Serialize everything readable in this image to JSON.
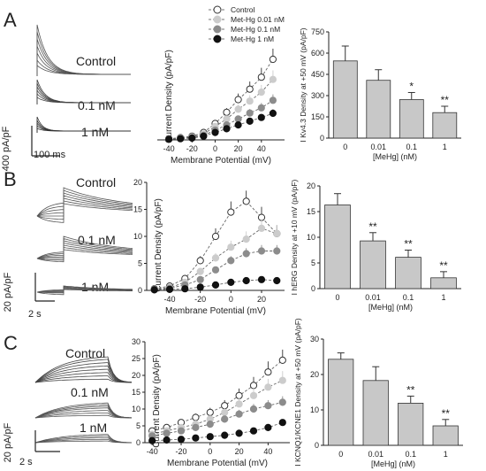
{
  "panel_labels": [
    "A",
    "B",
    "C"
  ],
  "legend": [
    {
      "label": "Control",
      "fill": "#ffffff"
    },
    {
      "label": "Met-Hg 0.01 nM",
      "fill": "#cccccc"
    },
    {
      "label": "Met-Hg 0.1 nM",
      "fill": "#8c8c8c"
    },
    {
      "label": "Met-Hg 1 nM",
      "fill": "#111111"
    }
  ],
  "colors": {
    "control": "#ffffff",
    "c001": "#cccccc",
    "c01": "#8c8c8c",
    "c1": "#111111",
    "bar": "#c8c8c8"
  },
  "traces": {
    "A": {
      "labels": [
        "Control",
        "0.1 nM",
        "1 nM"
      ],
      "scale_y": "400 pA/pF",
      "scale_x": "100 ms"
    },
    "B": {
      "labels": [
        "Control",
        "0.1 nM",
        "1 nM"
      ],
      "scale_y": "20 pA/pF",
      "scale_x": "2 s"
    },
    "C": {
      "labels": [
        "Control",
        "0.1 nM",
        "1 nM"
      ],
      "scale_y": "20 pA/pF",
      "scale_x": "2 s"
    }
  },
  "chart_data": [
    {
      "panel": "A",
      "type": "line",
      "xlabel": "Membrane Potential (mV)",
      "ylabel": "Current Density (pA/pF)",
      "xticks": [
        "-40",
        "-20",
        "0",
        "20",
        "40"
      ],
      "x": [
        -40,
        -30,
        -20,
        -10,
        0,
        10,
        20,
        30,
        40,
        50
      ],
      "xlim": [
        -50,
        60
      ],
      "ylim": [
        0,
        700
      ],
      "series": [
        {
          "name": "Control",
          "values": [
            8,
            15,
            25,
            50,
            110,
            185,
            270,
            340,
            420,
            540
          ]
        },
        {
          "name": "Met-Hg 0.01 nM",
          "values": [
            6,
            12,
            20,
            40,
            90,
            140,
            205,
            260,
            320,
            405
          ]
        },
        {
          "name": "Met-Hg 0.1 nM",
          "values": [
            5,
            10,
            15,
            30,
            65,
            100,
            140,
            180,
            215,
            265
          ]
        },
        {
          "name": "Met-Hg 1 nM",
          "values": [
            4,
            8,
            12,
            25,
            50,
            75,
            100,
            125,
            150,
            178
          ]
        }
      ]
    },
    {
      "panel": "A",
      "type": "bar",
      "ylabel": "I Kv4.3 Density at +50 mV (pA/pF)",
      "xlabel": "[MeHg] (nM)",
      "categories": [
        "0",
        "0.01",
        "0.1",
        "1"
      ],
      "values": [
        545,
        408,
        272,
        180
      ],
      "errors": [
        105,
        75,
        50,
        45
      ],
      "significance": [
        "",
        "",
        "*",
        "**"
      ],
      "yticks": [
        "0",
        "150",
        "300",
        "450",
        "600",
        "750"
      ],
      "ylim": [
        0,
        750
      ]
    },
    {
      "panel": "B",
      "type": "line",
      "xlabel": "Membrane Potential (mV)",
      "ylabel": "Current Density (pA/pF)",
      "xticks": [
        "-40",
        "-20",
        "0",
        "20"
      ],
      "yticks": [
        "0",
        "5",
        "10",
        "15",
        "20"
      ],
      "x": [
        -50,
        -40,
        -30,
        -20,
        -10,
        0,
        10,
        20,
        30
      ],
      "xlim": [
        -55,
        35
      ],
      "ylim": [
        0,
        20
      ],
      "series": [
        {
          "name": "Control",
          "values": [
            0.3,
            0.8,
            2.2,
            5.5,
            10.0,
            14.5,
            16.5,
            13.5,
            10.5
          ]
        },
        {
          "name": "Met-Hg 0.01 nM",
          "values": [
            0.2,
            0.5,
            1.5,
            3.5,
            6.0,
            8.0,
            9.5,
            11.5,
            10.5
          ]
        },
        {
          "name": "Met-Hg 0.1 nM",
          "values": [
            0.2,
            0.4,
            1.0,
            2.0,
            3.8,
            5.5,
            6.8,
            7.3,
            7.3
          ]
        },
        {
          "name": "Met-Hg 1 nM",
          "values": [
            0.1,
            0.2,
            0.3,
            0.6,
            1.0,
            1.5,
            1.8,
            2.0,
            1.8
          ]
        }
      ]
    },
    {
      "panel": "B",
      "type": "bar",
      "ylabel": "I hERG Density at +10 mV (pA/pF)",
      "xlabel": "[MeHg] (nM)",
      "categories": [
        "0",
        "0.01",
        "0.1",
        "1"
      ],
      "values": [
        16.3,
        9.3,
        6.1,
        2.1
      ],
      "errors": [
        2.2,
        1.6,
        1.4,
        1.2
      ],
      "significance": [
        "",
        "**",
        "**",
        "**"
      ],
      "yticks": [
        "0",
        "5",
        "10",
        "15",
        "20"
      ],
      "ylim": [
        0,
        20
      ]
    },
    {
      "panel": "C",
      "type": "line",
      "xlabel": "Membrane Potential (mV)",
      "ylabel": "Current Density (pA/pF)",
      "xticks": [
        "-40",
        "-20",
        "0",
        "20",
        "40"
      ],
      "yticks": [
        "0",
        "5",
        "10",
        "15",
        "20",
        "25",
        "30"
      ],
      "x": [
        -40,
        -30,
        -20,
        -10,
        0,
        10,
        20,
        30,
        40,
        50
      ],
      "xlim": [
        -45,
        55
      ],
      "ylim": [
        0,
        30
      ],
      "series": [
        {
          "name": "Control",
          "values": [
            3.5,
            4.5,
            6.0,
            7.5,
            9.0,
            11.0,
            14.0,
            17.0,
            21.0,
            24.5
          ]
        },
        {
          "name": "Met-Hg 0.01 nM",
          "values": [
            2.5,
            3.5,
            4.5,
            5.5,
            7.0,
            9.0,
            11.5,
            14.0,
            16.5,
            18.5
          ]
        },
        {
          "name": "Met-Hg 0.1 nM",
          "values": [
            2.0,
            2.8,
            3.5,
            4.5,
            5.5,
            7.0,
            8.5,
            10.0,
            11.0,
            12.0
          ]
        },
        {
          "name": "Met-Hg 1 nM",
          "values": [
            0.6,
            0.8,
            1.0,
            1.4,
            1.8,
            2.2,
            2.8,
            3.5,
            4.5,
            6.0
          ]
        }
      ]
    },
    {
      "panel": "C",
      "type": "bar",
      "ylabel": "I KCNQ1/KCNE1 Density at +50 mV (pA/pF)",
      "xlabel": "[MeHg] (nM)",
      "categories": [
        "0",
        "0.01",
        "0.1",
        "1"
      ],
      "values": [
        24.3,
        18.3,
        11.9,
        5.5
      ],
      "errors": [
        1.8,
        3.9,
        2.0,
        1.8
      ],
      "significance": [
        "",
        "",
        "**",
        "**"
      ],
      "yticks": [
        "0",
        "10",
        "20",
        "30"
      ],
      "ylim": [
        0,
        30
      ]
    }
  ]
}
